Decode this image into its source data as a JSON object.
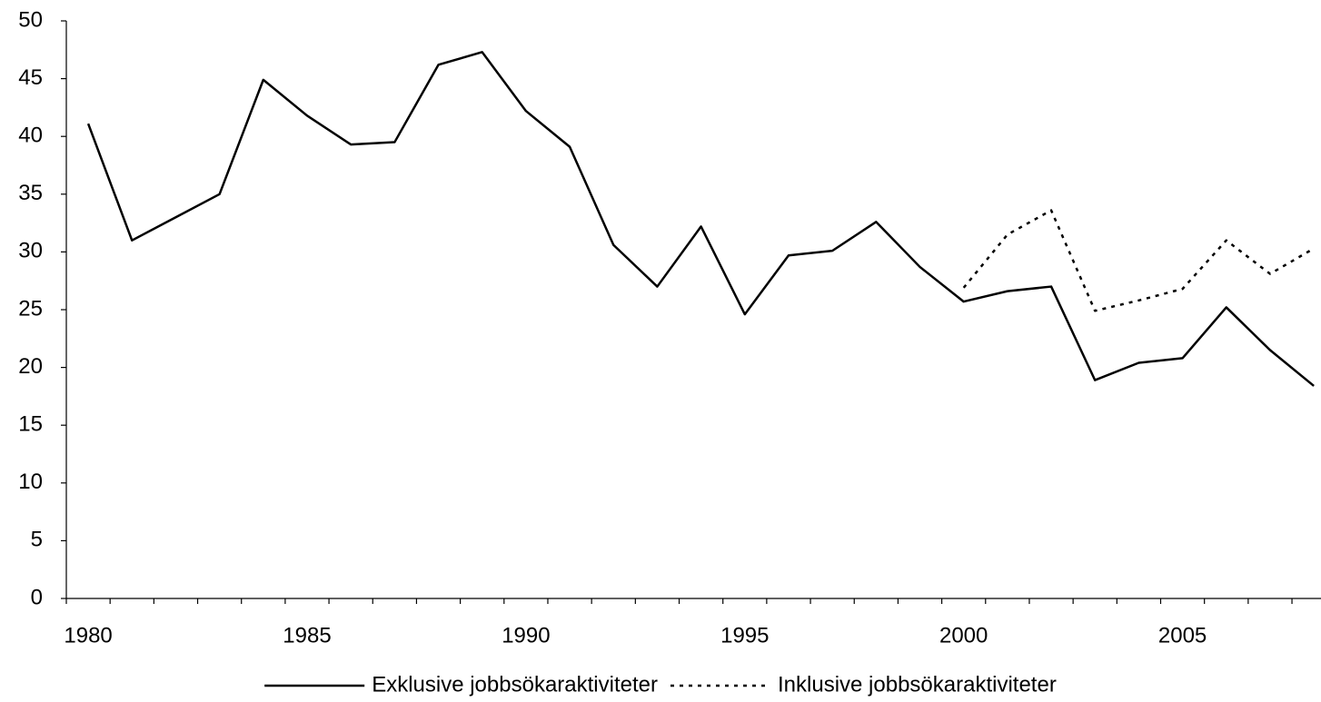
{
  "chart_data": {
    "type": "line",
    "categories": [
      "1980",
      null,
      null,
      null,
      null,
      "1985",
      null,
      null,
      null,
      null,
      "1990",
      null,
      null,
      null,
      null,
      "1995",
      null,
      null,
      null,
      null,
      "2000",
      null,
      null,
      null,
      null,
      "2005",
      null,
      null,
      null
    ],
    "series": [
      {
        "name": "Exklusive jobbsökaraktiviteter",
        "color": "#000000",
        "dash": "solid",
        "values": [
          41.1,
          31.0,
          33.0,
          35.0,
          44.9,
          41.8,
          39.3,
          39.5,
          46.2,
          47.3,
          42.2,
          39.1,
          30.6,
          27.0,
          32.2,
          24.6,
          29.7,
          30.1,
          32.6,
          28.7,
          25.7,
          26.6,
          27.0,
          18.9,
          20.4,
          20.8,
          25.2,
          21.5,
          18.4
        ]
      },
      {
        "name": "Inklusive jobbsökaraktiviteter",
        "color": "#000000",
        "dash": "dotted",
        "values": [
          null,
          null,
          null,
          null,
          null,
          null,
          null,
          null,
          null,
          null,
          null,
          null,
          null,
          null,
          null,
          null,
          null,
          null,
          null,
          null,
          26.9,
          31.5,
          33.6,
          24.9,
          25.8,
          26.8,
          31.0,
          28.1,
          30.3
        ]
      }
    ],
    "ylim": [
      0,
      50
    ],
    "yticks": [
      0,
      5,
      10,
      15,
      20,
      25,
      30,
      35,
      40,
      45,
      50
    ],
    "grid": false,
    "legend": "bottom"
  }
}
